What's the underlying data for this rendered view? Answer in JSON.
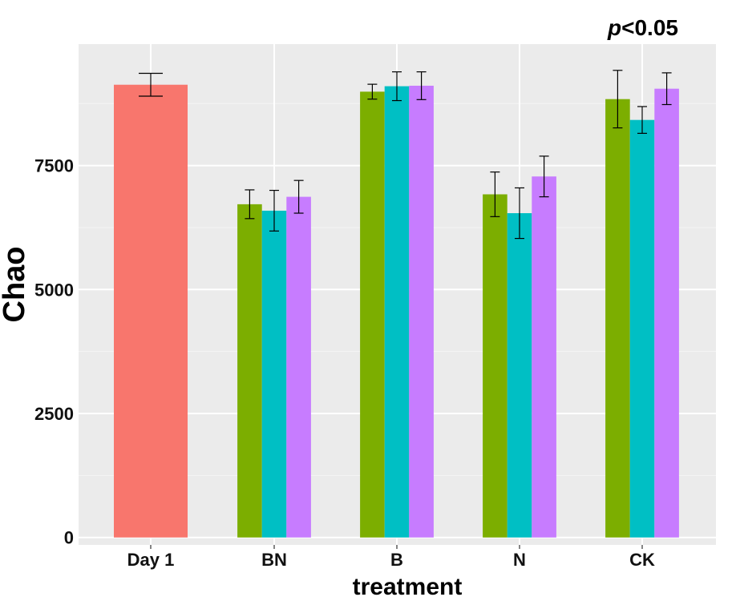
{
  "chart_data": {
    "type": "bar",
    "title": "",
    "annotation": {
      "italic": "p",
      "rest": "<0.05"
    },
    "xlabel": "treatment",
    "ylabel": "Chao",
    "ylim": [
      -150,
      9950
    ],
    "yticks": [
      0,
      2500,
      5000,
      7500
    ],
    "categories": [
      "Day 1",
      "BN",
      "B",
      "N",
      "CK"
    ],
    "colors": {
      "day1": "#F8766D",
      "series": [
        "#7CAE00",
        "#00BFC4",
        "#C77CFF"
      ],
      "panel": "#EBEBEB",
      "grid": "#FFFFFF"
    },
    "day1": {
      "value": 9130,
      "err": 230
    },
    "groups": [
      {
        "category": "BN",
        "values": [
          6720,
          6590,
          6870
        ],
        "errors": [
          290,
          410,
          330
        ]
      },
      {
        "category": "B",
        "values": [
          8990,
          9100,
          9110
        ],
        "errors": [
          150,
          290,
          280
        ]
      },
      {
        "category": "N",
        "values": [
          6920,
          6540,
          7280
        ],
        "errors": [
          450,
          510,
          410
        ]
      },
      {
        "category": "CK",
        "values": [
          8840,
          8420,
          9050
        ],
        "errors": [
          580,
          270,
          320
        ]
      }
    ]
  }
}
